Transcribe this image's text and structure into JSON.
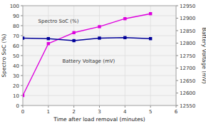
{
  "chart_data": {
    "type": "line",
    "x": [
      0,
      1,
      2,
      3,
      4,
      5
    ],
    "xlabel": "Time after load removal (minutes)",
    "ylabel": "Spectro SoC (%)",
    "y2label": "Battery Voltage (mV)",
    "xlim": [
      0,
      6
    ],
    "xticks": [
      0,
      1,
      2,
      3,
      4,
      5,
      6
    ],
    "ylim": [
      0,
      100
    ],
    "yticks": [
      0,
      10,
      20,
      30,
      40,
      50,
      60,
      70,
      80,
      90,
      100
    ],
    "y2lim": [
      12550,
      12950
    ],
    "y2ticks": [
      12550,
      12600,
      12650,
      12700,
      12750,
      12800,
      12850,
      12900,
      12950
    ],
    "grid": true,
    "series": [
      {
        "color": "#dd00dd",
        "marker": "square",
        "values": [
          10,
          62,
          73,
          79,
          87,
          92
        ]
      },
      {
        "color": "#000099",
        "marker": "square",
        "axis": "y2",
        "values": [
          12820,
          12818,
          12810,
          12820,
          12822,
          12818
        ]
      }
    ],
    "annotations": [
      {
        "text": "Spectro SoC (%)",
        "x": 0.6,
        "y": 83
      },
      {
        "text": "Battery Voltage (mV)",
        "x": 1.55,
        "y": 43
      }
    ]
  }
}
